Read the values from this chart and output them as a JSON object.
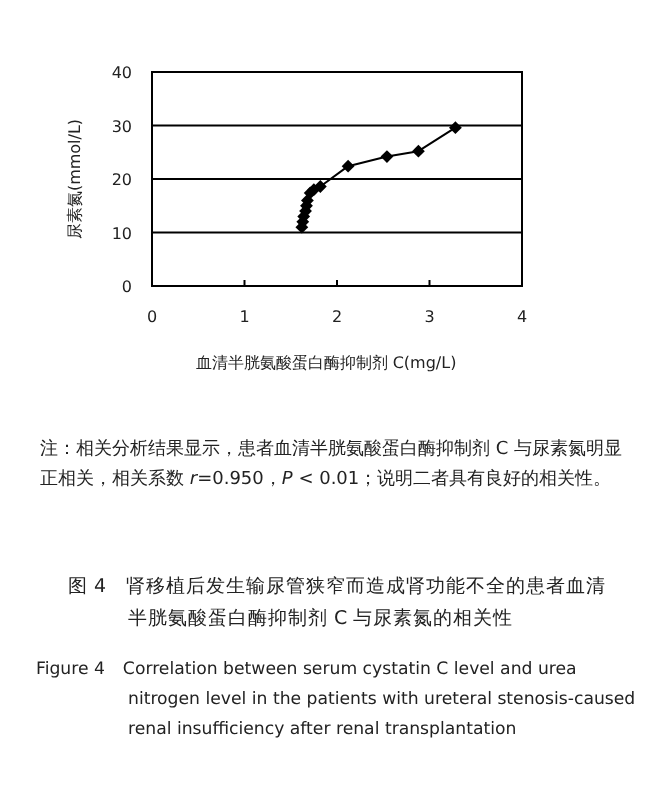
{
  "chart_data": {
    "type": "line",
    "title": "图 4　肾移植后发生输尿管狭窄而造成肾功能不全的患者血清半胱氨酸蛋白酶抑制剂 C 与尿素氮的相关性",
    "subtitle": "Figure 4　Correlation between serum cystatin C level and urea nitrogen level in the patients with ureteral stenosis-caused renal insufficiency after renal transplantation",
    "xlabel": "血清半胱氨酸蛋白酶抑制剂 C(mg/L)",
    "ylabel": "尿素氮(mmol/L)",
    "annotations": [
      "注：相关分析结果显示，患者血清半胱氨酸蛋白酶抑制剂 C 与尿素氮明显正相关，相关系数 *r*=0.950，*P* < 0.01；说明二者具有良好的相关性。"
    ],
    "series": [
      {
        "color": "#000000",
        "x": [
          1.62,
          1.63,
          1.64,
          1.66,
          1.67,
          1.68,
          1.71,
          1.75,
          1.82,
          2.12,
          2.54,
          2.88,
          3.28
        ],
        "values": [
          11,
          12,
          13,
          14,
          15,
          16,
          17.4,
          18,
          18.6,
          22.4,
          24.2,
          25.2,
          29.6
        ]
      }
    ],
    "xlim": [
      0,
      4
    ],
    "xticks": [
      0,
      1,
      2,
      3,
      4
    ],
    "ylim": [
      0,
      40
    ],
    "yticks": [
      0,
      10,
      20,
      30,
      40
    ],
    "grid": "y",
    "marker": "diamond",
    "line_style": "solid"
  }
}
